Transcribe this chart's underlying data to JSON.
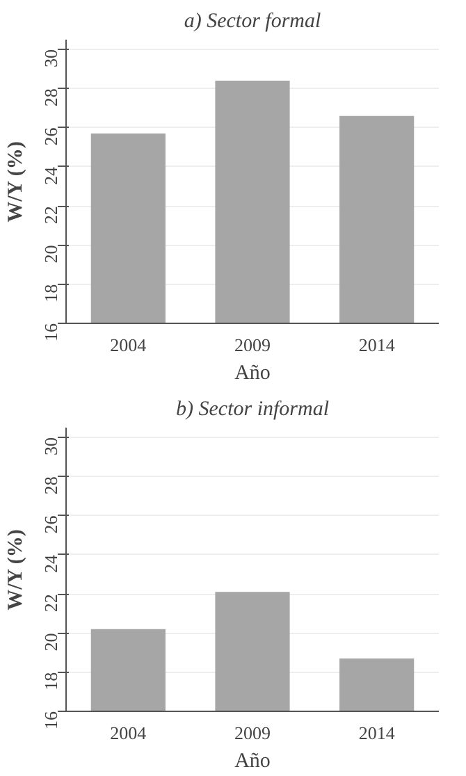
{
  "chart_data": [
    {
      "type": "bar",
      "title": "a) Sector formal",
      "xlabel": "Año",
      "ylabel": "W/Y (%)",
      "categories": [
        "2004",
        "2009",
        "2014"
      ],
      "values": [
        25.7,
        28.4,
        26.6
      ],
      "color": "#a6a6a6",
      "ylim": [
        16,
        30.5
      ],
      "yticks": [
        16,
        18,
        20,
        22,
        24,
        26,
        28,
        30
      ],
      "grid": "y"
    },
    {
      "type": "bar",
      "title": "b) Sector informal",
      "xlabel": "Año",
      "ylabel": "W/Y (%)",
      "categories": [
        "2004",
        "2009",
        "2014"
      ],
      "values": [
        20.2,
        22.1,
        18.7
      ],
      "color": "#a6a6a6",
      "ylim": [
        16,
        30.5
      ],
      "yticks": [
        16,
        18,
        20,
        22,
        24,
        26,
        28,
        30
      ],
      "grid": "y"
    }
  ]
}
